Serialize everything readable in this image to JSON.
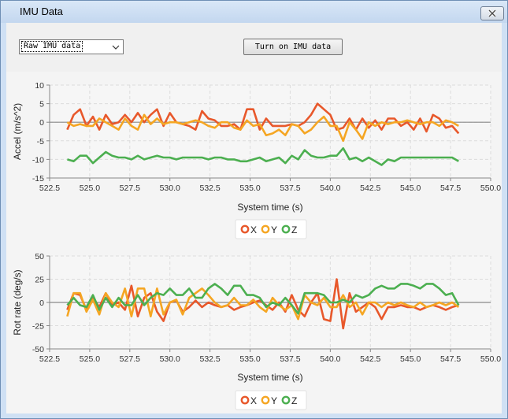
{
  "window": {
    "title": "IMU Data"
  },
  "toolbar": {
    "select_value": "Raw IMU data",
    "button_label": "Turn on IMU data"
  },
  "colors": {
    "x": "#e8582b",
    "y": "#f5a623",
    "z": "#4caf50"
  },
  "chart_data": [
    {
      "type": "line",
      "title": "",
      "xlabel": "System time (s)",
      "ylabel": "Accel (m/s^2)",
      "xlim": [
        522.5,
        550.0
      ],
      "ylim": [
        -15,
        10
      ],
      "x_ticks": [
        "522.5",
        "525.0",
        "527.5",
        "530.0",
        "532.5",
        "535.0",
        "537.5",
        "540.0",
        "542.5",
        "545.0",
        "547.5",
        "550.0"
      ],
      "y_ticks": [
        "10",
        "5",
        "0",
        "-5",
        "-10",
        "-15"
      ],
      "legend_position": "bottom",
      "x": [
        523.6,
        524.0,
        524.4,
        524.8,
        525.2,
        525.6,
        526.0,
        526.4,
        526.8,
        527.2,
        527.6,
        528.0,
        528.4,
        528.8,
        529.2,
        529.6,
        530.0,
        530.4,
        530.8,
        531.2,
        531.6,
        532.0,
        532.4,
        532.8,
        533.2,
        533.6,
        534.0,
        534.4,
        534.8,
        535.2,
        535.6,
        536.0,
        536.4,
        536.8,
        537.2,
        537.6,
        538.0,
        538.4,
        538.8,
        539.2,
        539.6,
        540.0,
        540.4,
        540.8,
        541.2,
        541.6,
        542.0,
        542.4,
        542.8,
        543.2,
        543.6,
        544.0,
        544.4,
        544.8,
        545.2,
        545.6,
        546.0,
        546.4,
        546.8,
        547.2,
        547.6,
        548.0
      ],
      "series": [
        {
          "name": "X",
          "values": [
            -2,
            2,
            3.5,
            -1,
            1.5,
            -2,
            2,
            -0.5,
            0,
            2,
            0,
            2.5,
            0,
            2,
            3.5,
            -1,
            2.5,
            0,
            -0.5,
            -1,
            -2,
            3,
            1,
            0.5,
            -1,
            -1,
            -0.5,
            -2,
            3.5,
            3.5,
            -2,
            1,
            -1,
            -1,
            -1,
            -0.5,
            -1,
            0,
            2,
            5,
            3.5,
            2,
            -2,
            -1.5,
            1,
            -2,
            1,
            -1.5,
            0.5,
            -2,
            1,
            1,
            -1,
            0,
            -2,
            1,
            -2.5,
            2,
            1,
            -1.5,
            -1,
            -3
          ]
        },
        {
          "name": "Y",
          "values": [
            0,
            -1,
            -0.5,
            -1,
            -1,
            1,
            0,
            -1,
            -2,
            1,
            -1,
            -2,
            2,
            -0.5,
            1,
            -0.5,
            0,
            0,
            -0.5,
            0,
            0.5,
            0,
            -1,
            -1.5,
            0,
            0,
            -1.5,
            -2,
            0.5,
            -1,
            -0.5,
            -3.5,
            -3,
            -2,
            -3.5,
            -0.5,
            -1,
            -3,
            -2,
            0,
            1.5,
            -1,
            -1,
            -5,
            0,
            -2,
            -4.5,
            0,
            -1,
            0,
            -0.5,
            0,
            0,
            0.5,
            0,
            -0.5,
            0,
            0,
            -1,
            0.5,
            0,
            -1
          ]
        },
        {
          "name": "Z",
          "values": [
            -10,
            -10.5,
            -9,
            -9,
            -11,
            -9.5,
            -8,
            -9,
            -9.5,
            -9.5,
            -10,
            -9,
            -10,
            -9.5,
            -9,
            -9.5,
            -9.5,
            -10,
            -9.5,
            -9.5,
            -9.5,
            -9.5,
            -10,
            -9.5,
            -9.5,
            -10,
            -10,
            -10.5,
            -10.5,
            -10,
            -9.5,
            -10.5,
            -10,
            -9.5,
            -11,
            -9,
            -10,
            -7.5,
            -9,
            -9.5,
            -9.5,
            -9,
            -9,
            -7,
            -10,
            -9.5,
            -10.5,
            -9.5,
            -10.5,
            -11.5,
            -10,
            -10.5,
            -9.5,
            -9.5,
            -9.5,
            -9.5,
            -9.5,
            -9.5,
            -9.5,
            -9.5,
            -9.5,
            -10.5
          ]
        }
      ]
    },
    {
      "type": "line",
      "title": "",
      "xlabel": "System time (s)",
      "ylabel": "Rot rate (deg/s)",
      "xlim": [
        522.5,
        550.0
      ],
      "ylim": [
        -50,
        50
      ],
      "x_ticks": [
        "522.5",
        "525.0",
        "527.5",
        "530.0",
        "532.5",
        "535.0",
        "537.5",
        "540.0",
        "542.5",
        "545.0",
        "547.5",
        "550.0"
      ],
      "y_ticks": [
        "50",
        "25",
        "0",
        "-25",
        "-50"
      ],
      "legend_position": "bottom",
      "x": [
        523.6,
        524.0,
        524.4,
        524.8,
        525.2,
        525.6,
        526.0,
        526.4,
        526.8,
        527.2,
        527.6,
        528.0,
        528.4,
        528.8,
        529.2,
        529.6,
        530.0,
        530.4,
        530.8,
        531.2,
        531.6,
        532.0,
        532.4,
        532.8,
        533.2,
        533.6,
        534.0,
        534.4,
        534.8,
        535.2,
        535.6,
        536.0,
        536.4,
        536.8,
        537.2,
        537.6,
        538.0,
        538.4,
        538.8,
        539.2,
        539.6,
        540.0,
        540.4,
        540.8,
        541.2,
        541.6,
        542.0,
        542.4,
        542.8,
        543.2,
        543.6,
        544.0,
        544.4,
        544.8,
        545.2,
        545.6,
        546.0,
        546.4,
        546.8,
        547.2,
        547.6,
        548.0
      ],
      "series": [
        {
          "name": "X",
          "values": [
            -8,
            10,
            8,
            -8,
            5,
            -5,
            10,
            -3,
            0,
            -8,
            18,
            -15,
            5,
            10,
            -10,
            -20,
            0,
            2,
            -10,
            -5,
            2,
            -5,
            0,
            -3,
            -5,
            -3,
            -8,
            -5,
            -3,
            0,
            2,
            -3,
            -8,
            0,
            -10,
            8,
            -8,
            -15,
            0,
            10,
            -18,
            -20,
            25,
            -28,
            10,
            -10,
            -5,
            0,
            -5,
            -18,
            -5,
            -5,
            -3,
            -5,
            -5,
            -8,
            -5,
            -3,
            -5,
            -8,
            -5,
            -3
          ]
        },
        {
          "name": "Y",
          "values": [
            -15,
            10,
            10,
            -10,
            3,
            -13,
            10,
            0,
            -5,
            15,
            -15,
            15,
            15,
            -15,
            15,
            -13,
            0,
            3,
            -13,
            5,
            10,
            15,
            8,
            0,
            -5,
            -3,
            5,
            -3,
            -3,
            3,
            -5,
            -10,
            5,
            -3,
            -8,
            -3,
            -18,
            8,
            0,
            -3,
            5,
            -5,
            -5,
            8,
            -5,
            0,
            -13,
            0,
            0,
            -5,
            0,
            -3,
            0,
            -3,
            -5,
            0,
            -5,
            -3,
            0,
            -3,
            0,
            -5
          ]
        },
        {
          "name": "Z",
          "values": [
            -3,
            5,
            -3,
            -5,
            8,
            -8,
            5,
            -5,
            5,
            -3,
            -3,
            8,
            -3,
            5,
            10,
            8,
            15,
            8,
            8,
            15,
            5,
            5,
            15,
            20,
            15,
            8,
            18,
            18,
            8,
            8,
            5,
            -5,
            0,
            -3,
            5,
            -3,
            -12,
            10,
            10,
            10,
            8,
            0,
            0,
            3,
            0,
            8,
            5,
            8,
            15,
            18,
            15,
            15,
            20,
            20,
            18,
            15,
            20,
            20,
            15,
            8,
            10,
            -3
          ]
        }
      ]
    }
  ],
  "legends": [
    {
      "items": [
        "X",
        "Y",
        "Z"
      ]
    },
    {
      "items": [
        "X",
        "Y",
        "Z"
      ]
    }
  ]
}
